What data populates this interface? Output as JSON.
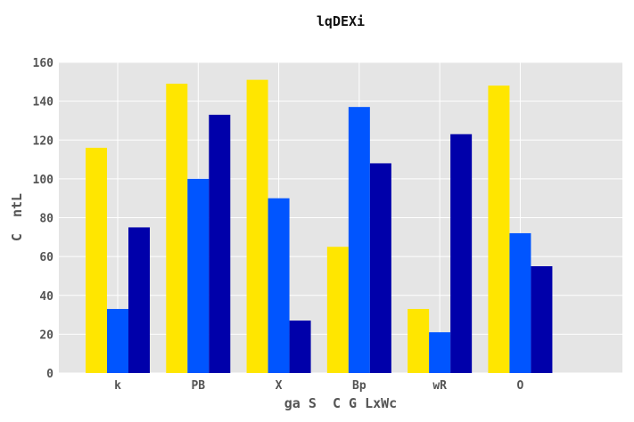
{
  "chart_data": {
    "type": "bar",
    "title": "lqDEXi",
    "xlabel": "ga S  C G LxWc",
    "ylabel": "C  ntL",
    "categories": [
      "k",
      "PB",
      "X",
      "Bp",
      "wR",
      "O"
    ],
    "ylim": [
      0,
      160
    ],
    "yticks": [
      0,
      20,
      40,
      60,
      80,
      100,
      120,
      140,
      160
    ],
    "grid": true,
    "legend": "none",
    "background": "#e5e5e5",
    "series": [
      {
        "color": "#ffe600",
        "values": [
          116,
          149,
          151,
          65,
          33,
          148
        ]
      },
      {
        "color": "#0055ff",
        "values": [
          33,
          100,
          90,
          137,
          21,
          72
        ]
      },
      {
        "color": "#0000aa",
        "values": [
          75,
          133,
          27,
          108,
          123,
          55
        ]
      }
    ]
  }
}
